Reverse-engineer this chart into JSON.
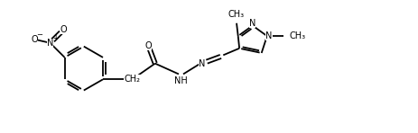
{
  "background_color": "#ffffff",
  "line_color": "#000000",
  "line_width": 1.3,
  "font_size": 7.0,
  "figsize": [
    4.64,
    1.48
  ],
  "dpi": 100,
  "xlim": [
    -0.5,
    10.5
  ],
  "ylim": [
    0.2,
    3.6
  ]
}
